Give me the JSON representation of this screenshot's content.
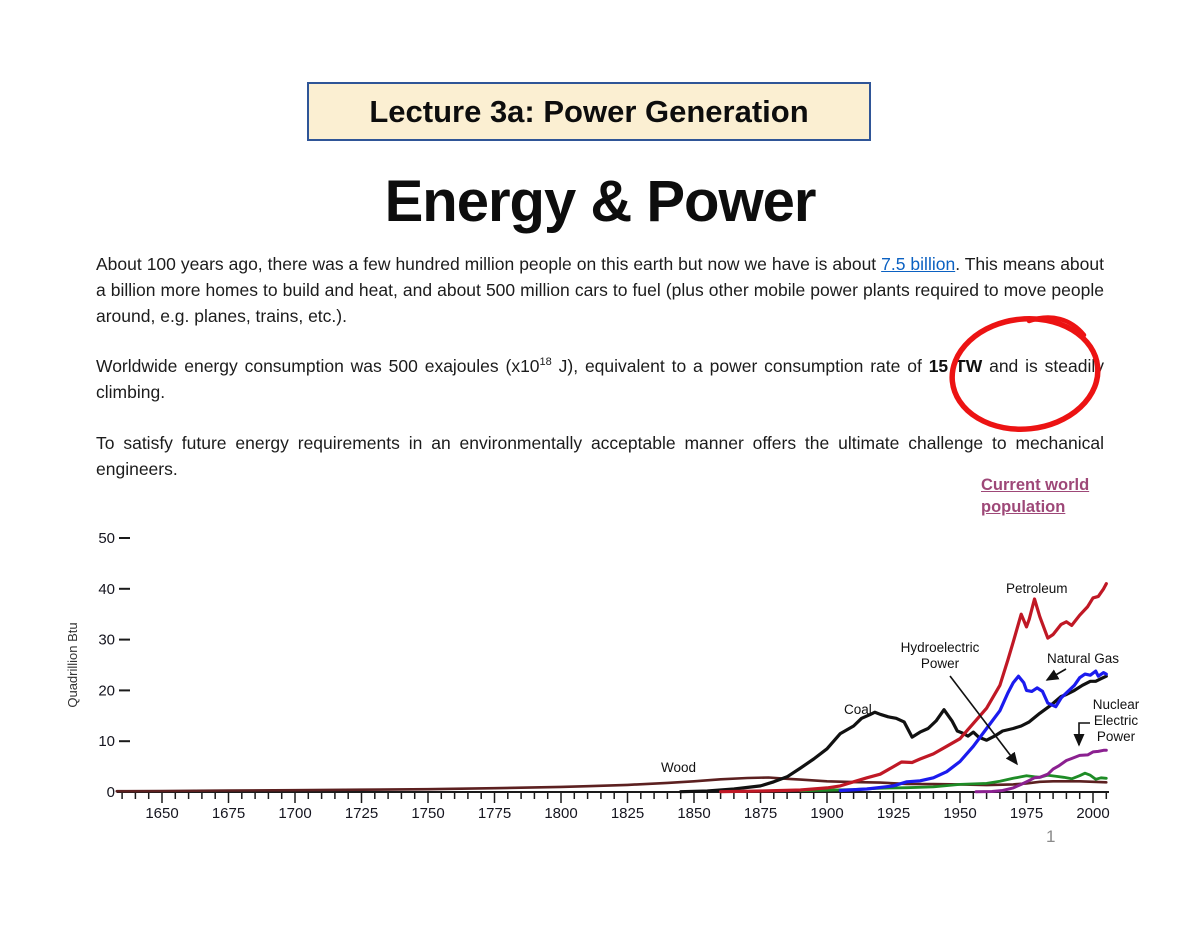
{
  "slide": {
    "header_box": "Lecture 3a: Power Generation",
    "title": "Energy & Power",
    "paragraph1": {
      "part1": "About 100 years ago, there was a few hundred million people on this earth but now we have is about ",
      "link": "7.5 billion",
      "part2": ". This means about a billion more homes to build and heat, and about 500 million cars to fuel (plus other mobile power plants required to move people around, e.g. planes, trains, etc.)."
    },
    "paragraph2": {
      "part1": "Worldwide energy consumption was 500 exajoules (x10",
      "sup": "18",
      "part2": " J), equivalent to a power consumption rate of ",
      "bold": "15 TW",
      "part3": " and is steadily climbing."
    },
    "paragraph3": "To satisfy future energy requirements in an environmentally acceptable manner offers the ultimate challenge to mechanical engineers.",
    "population_link": "Current world population",
    "page_number": "1"
  },
  "colors": {
    "header_box_bg": "#FBEFD2",
    "header_box_border": "#2F5597",
    "hyperlink_blue": "#0B61C2",
    "population_link": "#9E4878",
    "annotation_red": "#EC1313"
  },
  "chart_data": {
    "type": "line",
    "title": "",
    "xlabel": "",
    "ylabel": "Quadrillion Btu",
    "x_range": [
      1633,
      2006
    ],
    "ylim": [
      0,
      52
    ],
    "x_ticks": [
      1650,
      1675,
      1700,
      1725,
      1750,
      1775,
      1800,
      1825,
      1850,
      1875,
      1900,
      1925,
      1950,
      1975,
      2000
    ],
    "x_minor_step": 5,
    "y_ticks": [
      0,
      10,
      20,
      30,
      40,
      50
    ],
    "grid": false,
    "legend_position": "inline-annotations",
    "labels": {
      "petroleum": "Petroleum",
      "natural_gas": "Natural Gas",
      "coal": "Coal",
      "wood": "Wood",
      "hydroelectric": "Hydroelectric\nPower",
      "nuclear": "Nuclear\nElectric\nPower"
    },
    "series": [
      {
        "name": "Wood",
        "color": "#5C2020",
        "width": 2.6,
        "points": [
          [
            1633,
            0.15
          ],
          [
            1650,
            0.2
          ],
          [
            1675,
            0.3
          ],
          [
            1700,
            0.35
          ],
          [
            1725,
            0.45
          ],
          [
            1750,
            0.55
          ],
          [
            1775,
            0.75
          ],
          [
            1800,
            1.0
          ],
          [
            1810,
            1.15
          ],
          [
            1825,
            1.4
          ],
          [
            1840,
            1.8
          ],
          [
            1850,
            2.1
          ],
          [
            1860,
            2.5
          ],
          [
            1870,
            2.75
          ],
          [
            1878,
            2.85
          ],
          [
            1885,
            2.6
          ],
          [
            1890,
            2.45
          ],
          [
            1900,
            2.1
          ],
          [
            1910,
            1.95
          ],
          [
            1920,
            1.85
          ],
          [
            1930,
            1.6
          ],
          [
            1940,
            1.55
          ],
          [
            1950,
            1.5
          ],
          [
            1960,
            1.35
          ],
          [
            1970,
            1.5
          ],
          [
            1975,
            1.7
          ],
          [
            1980,
            2.0
          ],
          [
            1985,
            2.1
          ],
          [
            1990,
            2.1
          ],
          [
            1995,
            2.1
          ],
          [
            2000,
            2.0
          ],
          [
            2005,
            1.9
          ]
        ]
      },
      {
        "name": "Hydroelectric Power",
        "color": "#1E8C26",
        "width": 2.8,
        "points": [
          [
            1890,
            0.25
          ],
          [
            1900,
            0.35
          ],
          [
            1910,
            0.5
          ],
          [
            1920,
            0.75
          ],
          [
            1930,
            0.85
          ],
          [
            1940,
            1.0
          ],
          [
            1950,
            1.5
          ],
          [
            1955,
            1.6
          ],
          [
            1960,
            1.7
          ],
          [
            1965,
            2.1
          ],
          [
            1970,
            2.7
          ],
          [
            1973,
            3.0
          ],
          [
            1975,
            3.2
          ],
          [
            1978,
            3.0
          ],
          [
            1980,
            2.9
          ],
          [
            1983,
            3.3
          ],
          [
            1986,
            3.1
          ],
          [
            1989,
            2.9
          ],
          [
            1992,
            2.6
          ],
          [
            1995,
            3.2
          ],
          [
            1997,
            3.7
          ],
          [
            1999,
            3.3
          ],
          [
            2001,
            2.5
          ],
          [
            2003,
            2.8
          ],
          [
            2005,
            2.7
          ]
        ]
      },
      {
        "name": "Coal",
        "color": "#111111",
        "width": 3.2,
        "points": [
          [
            1845,
            0.05
          ],
          [
            1855,
            0.2
          ],
          [
            1865,
            0.6
          ],
          [
            1875,
            1.2
          ],
          [
            1880,
            2.0
          ],
          [
            1885,
            3.0
          ],
          [
            1890,
            4.7
          ],
          [
            1895,
            6.5
          ],
          [
            1900,
            8.5
          ],
          [
            1905,
            11.5
          ],
          [
            1910,
            13.0
          ],
          [
            1913,
            14.5
          ],
          [
            1916,
            15.2
          ],
          [
            1918,
            15.7
          ],
          [
            1920,
            15.3
          ],
          [
            1923,
            14.8
          ],
          [
            1926,
            14.5
          ],
          [
            1929,
            13.8
          ],
          [
            1932,
            10.8
          ],
          [
            1935,
            11.8
          ],
          [
            1938,
            12.5
          ],
          [
            1941,
            14.0
          ],
          [
            1944,
            16.2
          ],
          [
            1947,
            14.0
          ],
          [
            1949,
            12.0
          ],
          [
            1951,
            11.6
          ],
          [
            1953,
            11.0
          ],
          [
            1955,
            11.8
          ],
          [
            1957,
            10.8
          ],
          [
            1960,
            10.2
          ],
          [
            1963,
            11.0
          ],
          [
            1966,
            12.0
          ],
          [
            1970,
            12.5
          ],
          [
            1973,
            13.0
          ],
          [
            1976,
            13.8
          ],
          [
            1980,
            15.5
          ],
          [
            1984,
            17.0
          ],
          [
            1988,
            18.8
          ],
          [
            1990,
            19.2
          ],
          [
            1993,
            20.0
          ],
          [
            1996,
            21.0
          ],
          [
            1999,
            21.8
          ],
          [
            2001,
            21.8
          ],
          [
            2003,
            22.3
          ],
          [
            2005,
            22.8
          ]
        ]
      },
      {
        "name": "Natural Gas",
        "color": "#1B1BEE",
        "width": 3.2,
        "points": [
          [
            1905,
            0.3
          ],
          [
            1915,
            0.6
          ],
          [
            1925,
            1.2
          ],
          [
            1930,
            2.0
          ],
          [
            1935,
            2.2
          ],
          [
            1940,
            2.8
          ],
          [
            1945,
            4.0
          ],
          [
            1950,
            6.0
          ],
          [
            1955,
            9.0
          ],
          [
            1960,
            12.5
          ],
          [
            1965,
            16.0
          ],
          [
            1968,
            19.5
          ],
          [
            1970,
            21.5
          ],
          [
            1972,
            22.8
          ],
          [
            1974,
            21.5
          ],
          [
            1975,
            20.0
          ],
          [
            1977,
            19.8
          ],
          [
            1979,
            20.5
          ],
          [
            1981,
            19.8
          ],
          [
            1983,
            17.5
          ],
          [
            1986,
            16.8
          ],
          [
            1988,
            18.5
          ],
          [
            1990,
            19.5
          ],
          [
            1993,
            21.0
          ],
          [
            1995,
            22.5
          ],
          [
            1997,
            23.2
          ],
          [
            1999,
            23.0
          ],
          [
            2001,
            23.8
          ],
          [
            2002,
            22.8
          ],
          [
            2004,
            23.5
          ],
          [
            2005,
            23.2
          ]
        ]
      },
      {
        "name": "Nuclear Electric Power",
        "color": "#8B2090",
        "width": 3.0,
        "points": [
          [
            1956,
            0.05
          ],
          [
            1962,
            0.1
          ],
          [
            1966,
            0.3
          ],
          [
            1970,
            0.8
          ],
          [
            1973,
            1.5
          ],
          [
            1975,
            2.0
          ],
          [
            1978,
            2.8
          ],
          [
            1980,
            2.9
          ],
          [
            1983,
            3.5
          ],
          [
            1985,
            4.5
          ],
          [
            1987,
            5.1
          ],
          [
            1990,
            6.2
          ],
          [
            1992,
            6.6
          ],
          [
            1995,
            7.2
          ],
          [
            1998,
            7.3
          ],
          [
            2000,
            7.9
          ],
          [
            2002,
            8.0
          ],
          [
            2004,
            8.2
          ],
          [
            2005,
            8.2
          ]
        ]
      },
      {
        "name": "Petroleum",
        "color": "#C01825",
        "width": 3.2,
        "points": [
          [
            1860,
            0.05
          ],
          [
            1875,
            0.2
          ],
          [
            1890,
            0.4
          ],
          [
            1900,
            0.8
          ],
          [
            1905,
            1.2
          ],
          [
            1910,
            2.0
          ],
          [
            1915,
            2.8
          ],
          [
            1920,
            3.5
          ],
          [
            1925,
            5.0
          ],
          [
            1928,
            5.9
          ],
          [
            1932,
            5.8
          ],
          [
            1935,
            6.5
          ],
          [
            1940,
            7.5
          ],
          [
            1945,
            9.0
          ],
          [
            1950,
            10.5
          ],
          [
            1955,
            13.5
          ],
          [
            1960,
            16.5
          ],
          [
            1965,
            21.0
          ],
          [
            1968,
            26.0
          ],
          [
            1970,
            29.5
          ],
          [
            1973,
            35.0
          ],
          [
            1975,
            32.5
          ],
          [
            1976,
            34.0
          ],
          [
            1978,
            38.0
          ],
          [
            1980,
            34.5
          ],
          [
            1983,
            30.3
          ],
          [
            1985,
            31.0
          ],
          [
            1988,
            33.0
          ],
          [
            1990,
            33.5
          ],
          [
            1992,
            32.8
          ],
          [
            1995,
            34.8
          ],
          [
            1998,
            36.5
          ],
          [
            2000,
            38.2
          ],
          [
            2002,
            38.5
          ],
          [
            2004,
            40.0
          ],
          [
            2005,
            41.0
          ]
        ]
      }
    ]
  }
}
